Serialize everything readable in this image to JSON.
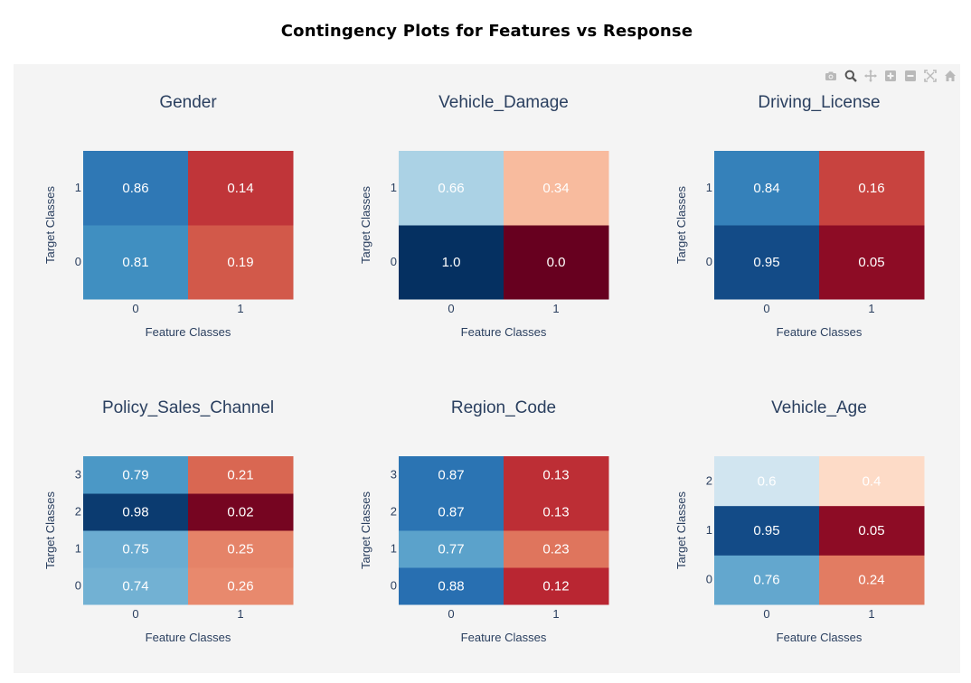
{
  "page": {
    "title": "Contingency Plots for Features vs Response"
  },
  "modebar": {
    "buttons": [
      {
        "name": "camera-icon",
        "label": "Download plot as png"
      },
      {
        "name": "zoom-icon",
        "label": "Zoom"
      },
      {
        "name": "pan-icon",
        "label": "Pan"
      },
      {
        "name": "zoom-in-icon",
        "label": "Zoom in"
      },
      {
        "name": "zoom-out-icon",
        "label": "Zoom out"
      },
      {
        "name": "autoscale-icon",
        "label": "Autoscale"
      },
      {
        "name": "home-icon",
        "label": "Reset axes"
      }
    ]
  },
  "colors": {
    "panel_bg": "#f4f4f4",
    "title_color": "#2a3f5f",
    "tick_color": "#2a3f5f",
    "colorscale": "RdBu"
  },
  "chart_data": [
    {
      "type": "heatmap",
      "title": "Gender",
      "xlabel": "Feature Classes",
      "ylabel": "Target Classes",
      "x_ticks": [
        "0",
        "1"
      ],
      "y_ticks": [
        "0",
        "1"
      ],
      "rows": [
        {
          "y": "0",
          "values": [
            0.81,
            0.19
          ],
          "labels": [
            "0.81",
            "0.19"
          ]
        },
        {
          "y": "1",
          "values": [
            0.86,
            0.14
          ],
          "labels": [
            "0.86",
            "0.14"
          ]
        }
      ]
    },
    {
      "type": "heatmap",
      "title": "Vehicle_Damage",
      "xlabel": "Feature Classes",
      "ylabel": "Target Classes",
      "x_ticks": [
        "0",
        "1"
      ],
      "y_ticks": [
        "0",
        "1"
      ],
      "rows": [
        {
          "y": "0",
          "values": [
            1.0,
            0.0
          ],
          "labels": [
            "1.0",
            "0.0"
          ]
        },
        {
          "y": "1",
          "values": [
            0.66,
            0.34
          ],
          "labels": [
            "0.66",
            "0.34"
          ]
        }
      ]
    },
    {
      "type": "heatmap",
      "title": "Driving_License",
      "xlabel": "Feature Classes",
      "ylabel": "Target Classes",
      "x_ticks": [
        "0",
        "1"
      ],
      "y_ticks": [
        "0",
        "1"
      ],
      "rows": [
        {
          "y": "0",
          "values": [
            0.95,
            0.05
          ],
          "labels": [
            "0.95",
            "0.05"
          ]
        },
        {
          "y": "1",
          "values": [
            0.84,
            0.16
          ],
          "labels": [
            "0.84",
            "0.16"
          ]
        }
      ]
    },
    {
      "type": "heatmap",
      "title": "Policy_Sales_Channel",
      "xlabel": "Feature Classes",
      "ylabel": "Target Classes",
      "x_ticks": [
        "0",
        "1"
      ],
      "y_ticks": [
        "0",
        "1",
        "2",
        "3"
      ],
      "rows": [
        {
          "y": "0",
          "values": [
            0.74,
            0.26
          ],
          "labels": [
            "0.74",
            "0.26"
          ]
        },
        {
          "y": "1",
          "values": [
            0.75,
            0.25
          ],
          "labels": [
            "0.75",
            "0.25"
          ]
        },
        {
          "y": "2",
          "values": [
            0.98,
            0.02
          ],
          "labels": [
            "0.98",
            "0.02"
          ]
        },
        {
          "y": "3",
          "values": [
            0.79,
            0.21
          ],
          "labels": [
            "0.79",
            "0.21"
          ]
        }
      ]
    },
    {
      "type": "heatmap",
      "title": "Region_Code",
      "xlabel": "Feature Classes",
      "ylabel": "Target Classes",
      "x_ticks": [
        "0",
        "1"
      ],
      "y_ticks": [
        "0",
        "1",
        "2",
        "3"
      ],
      "rows": [
        {
          "y": "0",
          "values": [
            0.88,
            0.12
          ],
          "labels": [
            "0.88",
            "0.12"
          ]
        },
        {
          "y": "1",
          "values": [
            0.77,
            0.23
          ],
          "labels": [
            "0.77",
            "0.23"
          ]
        },
        {
          "y": "2",
          "values": [
            0.87,
            0.13
          ],
          "labels": [
            "0.87",
            "0.13"
          ]
        },
        {
          "y": "3",
          "values": [
            0.87,
            0.13
          ],
          "labels": [
            "0.87",
            "0.13"
          ]
        }
      ]
    },
    {
      "type": "heatmap",
      "title": "Vehicle_Age",
      "xlabel": "Feature Classes",
      "ylabel": "Target Classes",
      "x_ticks": [
        "0",
        "1"
      ],
      "y_ticks": [
        "0",
        "1",
        "2"
      ],
      "rows": [
        {
          "y": "0",
          "values": [
            0.76,
            0.24
          ],
          "labels": [
            "0.76",
            "0.24"
          ]
        },
        {
          "y": "1",
          "values": [
            0.95,
            0.05
          ],
          "labels": [
            "0.95",
            "0.05"
          ]
        },
        {
          "y": "2",
          "values": [
            0.6,
            0.4
          ],
          "labels": [
            "0.6",
            "0.4"
          ]
        }
      ]
    }
  ]
}
